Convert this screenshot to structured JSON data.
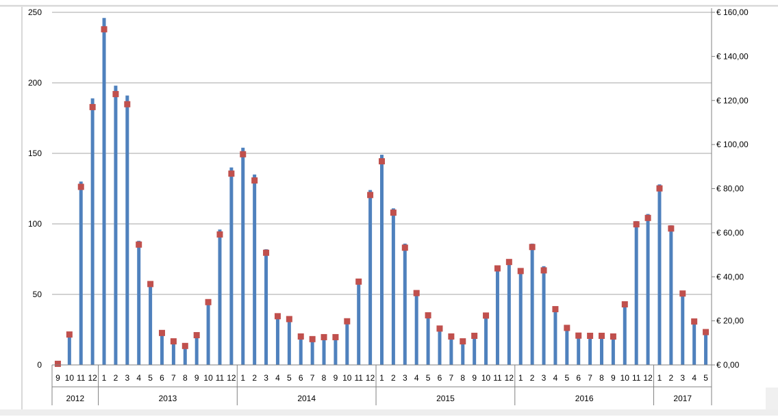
{
  "chart_data": {
    "type": "bar",
    "title": "",
    "xlabel": "",
    "ylabel": "",
    "ylim": [
      0,
      250
    ],
    "y_ticks": [
      "0",
      "50",
      "100",
      "150",
      "200",
      "250"
    ],
    "y2lim": [
      0,
      160
    ],
    "y2_ticks": [
      "€ 0,00",
      "€ 20,00",
      "€ 40,00",
      "€ 60,00",
      "€ 80,00",
      "€ 100,00",
      "€ 120,00",
      "€ 140,00",
      "€ 160,00"
    ],
    "grid": true,
    "legend": "none",
    "colors": {
      "bars": "#4f81bd",
      "markers": "#c0504d",
      "grid": "#a6a6a6"
    },
    "months": [
      "9",
      "10",
      "11",
      "12",
      "1",
      "2",
      "3",
      "4",
      "5",
      "6",
      "7",
      "8",
      "9",
      "10",
      "11",
      "12",
      "1",
      "2",
      "3",
      "4",
      "5",
      "6",
      "7",
      "8",
      "9",
      "10",
      "11",
      "12",
      "1",
      "2",
      "3",
      "4",
      "5",
      "6",
      "7",
      "8",
      "9",
      "10",
      "11",
      "12",
      "1",
      "2",
      "3",
      "4",
      "5",
      "6",
      "7",
      "8",
      "9",
      "10",
      "11",
      "12",
      "1",
      "2",
      "3",
      "4",
      "5"
    ],
    "years": [
      {
        "label": "2012",
        "count": 4
      },
      {
        "label": "2013",
        "count": 12
      },
      {
        "label": "2014",
        "count": 12
      },
      {
        "label": "2015",
        "count": 12
      },
      {
        "label": "2016",
        "count": 12
      },
      {
        "label": "2017",
        "count": 5
      }
    ],
    "series": [
      {
        "type": "bar",
        "axis": "left",
        "values": [
          0,
          20,
          130,
          189,
          246,
          198,
          191,
          88,
          58,
          22,
          15,
          12,
          20,
          45,
          96,
          140,
          154,
          135,
          82,
          35,
          32,
          19,
          17,
          19,
          19,
          30,
          61,
          124,
          149,
          111,
          86,
          52,
          35,
          25,
          19,
          15,
          19,
          35,
          70,
          75,
          68,
          86,
          70,
          40,
          25,
          20,
          19,
          19,
          19,
          44,
          102,
          107,
          128,
          99,
          52,
          30,
          22
        ]
      },
      {
        "type": "scatter",
        "axis": "right",
        "values": [
          0.5,
          13.8,
          80.8,
          117,
          152.3,
          122.9,
          118.3,
          54.6,
          36.7,
          14.5,
          10.7,
          8.6,
          13.5,
          28.5,
          59.2,
          86.8,
          95.6,
          83.7,
          50.9,
          22.1,
          20.8,
          12.9,
          11.7,
          12.6,
          12.6,
          19.8,
          37.8,
          77.1,
          92.4,
          69.1,
          53.2,
          32.6,
          22.5,
          16.5,
          12.9,
          10.7,
          13.2,
          22.4,
          43.8,
          46.7,
          42.6,
          53.5,
          42.9,
          25.3,
          16.8,
          13.3,
          13.2,
          13.2,
          12.9,
          27.5,
          63.8,
          66.7,
          80.1,
          61.9,
          32.4,
          19.7,
          14.9
        ]
      }
    ]
  }
}
